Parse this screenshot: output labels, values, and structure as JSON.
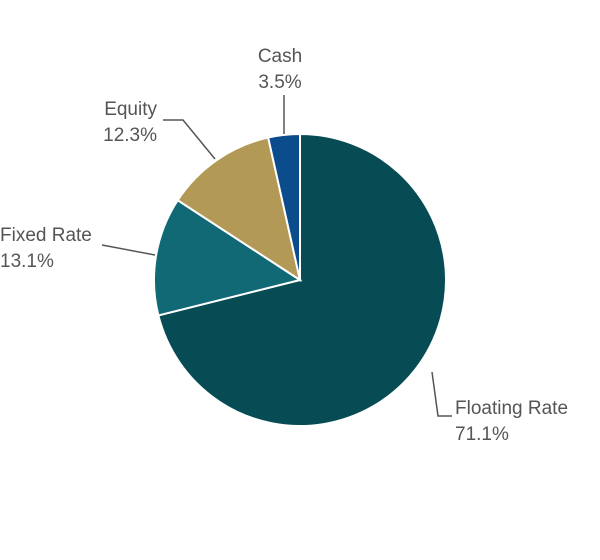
{
  "chart_data": {
    "type": "pie",
    "slices": [
      {
        "label": "Floating Rate",
        "value": 71.1,
        "value_label": "71.1%",
        "color": "#074C54"
      },
      {
        "label": "Fixed Rate",
        "value": 13.1,
        "value_label": "13.1%",
        "color": "#106975"
      },
      {
        "label": "Equity",
        "value": 12.3,
        "value_label": "12.3%",
        "color": "#B29A56"
      },
      {
        "label": "Cash",
        "value": 3.5,
        "value_label": "3.5%",
        "color": "#0B4C8C"
      }
    ],
    "start_angle": "12 o'clock",
    "direction": "clockwise",
    "legend": "none",
    "labels": "outside with leader lines"
  }
}
